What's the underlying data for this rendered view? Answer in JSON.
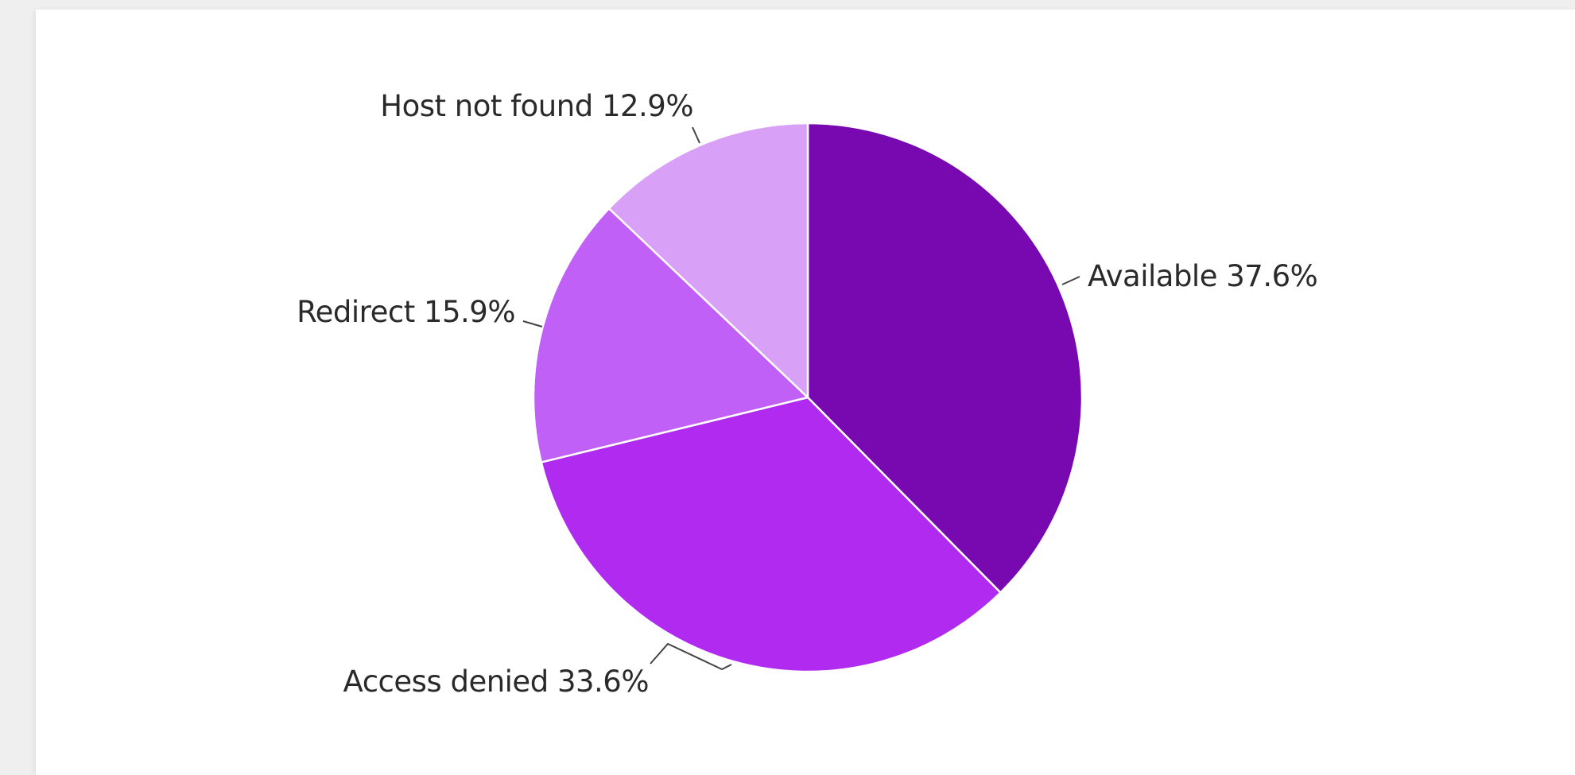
{
  "chart_data": {
    "type": "pie",
    "title": "",
    "start_angle_deg": 0,
    "direction": "clockwise",
    "labels_show_percent": true,
    "slices": [
      {
        "label": "Available",
        "value": 37.6,
        "color": "#7808b0"
      },
      {
        "label": "Access denied",
        "value": 33.6,
        "color": "#b02bef"
      },
      {
        "label": "Redirect",
        "value": 15.9,
        "color": "#c060f6"
      },
      {
        "label": "Host not found",
        "value": 12.9,
        "color": "#d9a0f8"
      }
    ]
  }
}
